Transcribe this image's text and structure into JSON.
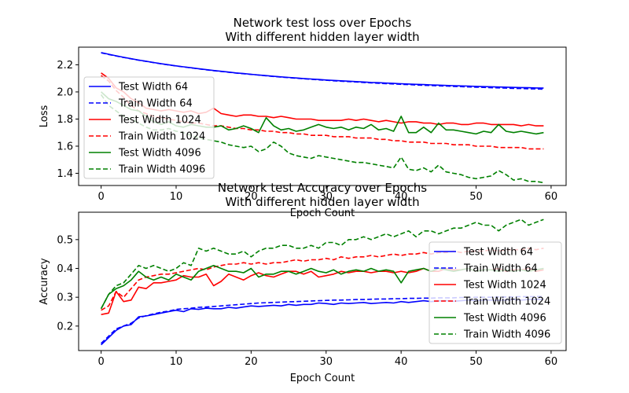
{
  "chart_data": [
    {
      "type": "line",
      "title_lines": [
        "Network test loss over Epochs",
        "With different hidden layer width"
      ],
      "xlabel": "Epoch Count",
      "ylabel": "Loss",
      "xlim": [
        -3,
        62
      ],
      "ylim": [
        1.31,
        2.33
      ],
      "xticks": [
        0,
        10,
        20,
        30,
        40,
        50,
        60
      ],
      "yticks": [
        1.4,
        1.6,
        1.8,
        2.0,
        2.2
      ],
      "ytick_labels": [
        "1.4",
        "1.6",
        "1.8",
        "2.0",
        "2.2"
      ],
      "grid": false,
      "legend_position": "upper-left",
      "x": [
        0,
        1,
        2,
        3,
        4,
        5,
        6,
        7,
        8,
        9,
        10,
        11,
        12,
        13,
        14,
        15,
        16,
        17,
        18,
        19,
        20,
        21,
        22,
        23,
        24,
        25,
        26,
        27,
        28,
        29,
        30,
        31,
        32,
        33,
        34,
        35,
        36,
        37,
        38,
        39,
        40,
        41,
        42,
        43,
        44,
        45,
        46,
        47,
        48,
        49,
        50,
        51,
        52,
        53,
        54,
        55,
        56,
        57,
        58,
        59
      ],
      "series": [
        {
          "name": "Test Width 64",
          "color": "#0000ff",
          "dash": "solid",
          "values": [
            2.29,
            2.278,
            2.266,
            2.255,
            2.245,
            2.235,
            2.226,
            2.217,
            2.208,
            2.2,
            2.192,
            2.185,
            2.178,
            2.171,
            2.164,
            2.158,
            2.152,
            2.146,
            2.14,
            2.135,
            2.13,
            2.125,
            2.12,
            2.115,
            2.111,
            2.107,
            2.103,
            2.099,
            2.095,
            2.092,
            2.088,
            2.085,
            2.082,
            2.079,
            2.076,
            2.073,
            2.07,
            2.068,
            2.065,
            2.063,
            2.06,
            2.058,
            2.056,
            2.054,
            2.052,
            2.05,
            2.048,
            2.046,
            2.044,
            2.043,
            2.041,
            2.039,
            2.038,
            2.036,
            2.035,
            2.033,
            2.032,
            2.031,
            2.029,
            2.028
          ]
        },
        {
          "name": "Train Width 64",
          "color": "#0000ff",
          "dash": "dashed",
          "values": [
            2.288,
            2.276,
            2.265,
            2.254,
            2.244,
            2.234,
            2.225,
            2.216,
            2.207,
            2.199,
            2.191,
            2.184,
            2.177,
            2.17,
            2.163,
            2.157,
            2.151,
            2.145,
            2.139,
            2.134,
            2.129,
            2.124,
            2.119,
            2.114,
            2.109,
            2.105,
            2.101,
            2.097,
            2.093,
            2.089,
            2.086,
            2.082,
            2.079,
            2.076,
            2.073,
            2.07,
            2.067,
            2.064,
            2.061,
            2.059,
            2.056,
            2.054,
            2.051,
            2.049,
            2.047,
            2.045,
            2.043,
            2.041,
            2.039,
            2.037,
            2.035,
            2.033,
            2.031,
            2.03,
            2.028,
            2.026,
            2.025,
            2.023,
            2.022,
            2.02
          ]
        },
        {
          "name": "Test Width 1024",
          "color": "#ff0000",
          "dash": "solid",
          "values": [
            2.14,
            2.1,
            2.03,
            2.0,
            1.95,
            1.92,
            1.88,
            1.87,
            1.86,
            1.87,
            1.86,
            1.85,
            1.86,
            1.84,
            1.85,
            1.88,
            1.84,
            1.83,
            1.82,
            1.83,
            1.83,
            1.82,
            1.82,
            1.81,
            1.82,
            1.81,
            1.8,
            1.8,
            1.8,
            1.79,
            1.79,
            1.79,
            1.79,
            1.8,
            1.79,
            1.8,
            1.79,
            1.78,
            1.79,
            1.78,
            1.77,
            1.78,
            1.78,
            1.77,
            1.77,
            1.76,
            1.77,
            1.77,
            1.76,
            1.76,
            1.77,
            1.77,
            1.76,
            1.76,
            1.76,
            1.76,
            1.75,
            1.76,
            1.75,
            1.75
          ]
        },
        {
          "name": "Train Width 1024",
          "color": "#ff0000",
          "dash": "dashed",
          "values": [
            2.12,
            2.08,
            2.01,
            1.96,
            1.9,
            1.86,
            1.84,
            1.82,
            1.81,
            1.8,
            1.79,
            1.78,
            1.77,
            1.77,
            1.76,
            1.75,
            1.75,
            1.74,
            1.73,
            1.73,
            1.72,
            1.72,
            1.71,
            1.71,
            1.7,
            1.7,
            1.69,
            1.69,
            1.68,
            1.68,
            1.68,
            1.67,
            1.67,
            1.67,
            1.66,
            1.66,
            1.66,
            1.65,
            1.65,
            1.64,
            1.64,
            1.63,
            1.63,
            1.63,
            1.62,
            1.62,
            1.62,
            1.61,
            1.61,
            1.61,
            1.6,
            1.6,
            1.6,
            1.59,
            1.59,
            1.59,
            1.59,
            1.58,
            1.58,
            1.58
          ]
        },
        {
          "name": "Test Width 4096",
          "color": "#008000",
          "dash": "solid",
          "values": [
            2.0,
            1.95,
            1.93,
            1.9,
            1.87,
            1.86,
            1.82,
            1.78,
            1.76,
            1.78,
            1.75,
            1.74,
            1.76,
            1.75,
            1.74,
            1.74,
            1.75,
            1.72,
            1.73,
            1.75,
            1.73,
            1.7,
            1.81,
            1.75,
            1.72,
            1.73,
            1.71,
            1.72,
            1.74,
            1.76,
            1.74,
            1.73,
            1.74,
            1.72,
            1.74,
            1.73,
            1.76,
            1.72,
            1.73,
            1.71,
            1.82,
            1.7,
            1.7,
            1.74,
            1.7,
            1.77,
            1.72,
            1.72,
            1.71,
            1.7,
            1.69,
            1.71,
            1.7,
            1.76,
            1.71,
            1.7,
            1.71,
            1.7,
            1.69,
            1.7
          ]
        },
        {
          "name": "Train Width 4096",
          "color": "#008000",
          "dash": "dashed",
          "values": [
            1.98,
            1.9,
            1.86,
            1.82,
            1.8,
            1.77,
            1.74,
            1.72,
            1.72,
            1.73,
            1.71,
            1.7,
            1.68,
            1.66,
            1.65,
            1.64,
            1.63,
            1.61,
            1.6,
            1.59,
            1.6,
            1.56,
            1.58,
            1.63,
            1.6,
            1.55,
            1.53,
            1.52,
            1.51,
            1.53,
            1.52,
            1.51,
            1.5,
            1.49,
            1.48,
            1.48,
            1.47,
            1.46,
            1.45,
            1.44,
            1.52,
            1.43,
            1.42,
            1.44,
            1.41,
            1.46,
            1.41,
            1.4,
            1.39,
            1.37,
            1.36,
            1.37,
            1.38,
            1.42,
            1.39,
            1.35,
            1.36,
            1.34,
            1.34,
            1.33
          ]
        }
      ]
    },
    {
      "type": "line",
      "title_lines": [
        "Network test Accuracy over Epochs",
        "With different hidden layer width"
      ],
      "xlabel": "Epoch Count",
      "ylabel": "Accuracy",
      "xlim": [
        -3,
        62
      ],
      "ylim": [
        0.115,
        0.595
      ],
      "xticks": [
        0,
        10,
        20,
        30,
        40,
        50,
        60
      ],
      "yticks": [
        0.2,
        0.3,
        0.4,
        0.5
      ],
      "ytick_labels": [
        "0.2",
        "0.3",
        "0.4",
        "0.5"
      ],
      "grid": false,
      "legend_position": "center-right",
      "x": [
        0,
        1,
        2,
        3,
        4,
        5,
        6,
        7,
        8,
        9,
        10,
        11,
        12,
        13,
        14,
        15,
        16,
        17,
        18,
        19,
        20,
        21,
        22,
        23,
        24,
        25,
        26,
        27,
        28,
        29,
        30,
        31,
        32,
        33,
        34,
        35,
        36,
        37,
        38,
        39,
        40,
        41,
        42,
        43,
        44,
        45,
        46,
        47,
        48,
        49,
        50,
        51,
        52,
        53,
        54,
        55,
        56,
        57,
        58,
        59
      ],
      "series": [
        {
          "name": "Test Width 64",
          "color": "#0000ff",
          "dash": "solid",
          "values": [
            0.135,
            0.16,
            0.185,
            0.2,
            0.205,
            0.232,
            0.235,
            0.24,
            0.245,
            0.25,
            0.255,
            0.25,
            0.26,
            0.258,
            0.262,
            0.26,
            0.26,
            0.265,
            0.262,
            0.266,
            0.27,
            0.268,
            0.27,
            0.272,
            0.27,
            0.275,
            0.272,
            0.275,
            0.275,
            0.28,
            0.278,
            0.275,
            0.28,
            0.278,
            0.28,
            0.282,
            0.278,
            0.28,
            0.282,
            0.28,
            0.285,
            0.282,
            0.285,
            0.288,
            0.285,
            0.287,
            0.288,
            0.286,
            0.288,
            0.29,
            0.288,
            0.29,
            0.29,
            0.289,
            0.29,
            0.292,
            0.29,
            0.292,
            0.293,
            0.292
          ]
        },
        {
          "name": "Train Width 64",
          "color": "#0000ff",
          "dash": "dashed",
          "values": [
            0.14,
            0.165,
            0.19,
            0.2,
            0.21,
            0.228,
            0.236,
            0.242,
            0.248,
            0.252,
            0.258,
            0.26,
            0.262,
            0.265,
            0.266,
            0.268,
            0.27,
            0.272,
            0.274,
            0.276,
            0.278,
            0.28,
            0.281,
            0.282,
            0.283,
            0.284,
            0.285,
            0.286,
            0.287,
            0.288,
            0.289,
            0.29,
            0.29,
            0.291,
            0.292,
            0.292,
            0.293,
            0.294,
            0.294,
            0.295,
            0.295,
            0.296,
            0.296,
            0.297,
            0.297,
            0.298,
            0.298,
            0.298,
            0.299,
            0.299,
            0.3,
            0.3,
            0.3,
            0.301,
            0.301,
            0.301,
            0.302,
            0.302,
            0.302,
            0.303
          ]
        },
        {
          "name": "Test Width 1024",
          "color": "#ff0000",
          "dash": "solid",
          "values": [
            0.24,
            0.245,
            0.32,
            0.285,
            0.29,
            0.335,
            0.33,
            0.35,
            0.35,
            0.355,
            0.36,
            0.375,
            0.37,
            0.37,
            0.38,
            0.34,
            0.355,
            0.38,
            0.37,
            0.36,
            0.375,
            0.385,
            0.375,
            0.37,
            0.38,
            0.39,
            0.39,
            0.38,
            0.39,
            0.37,
            0.375,
            0.38,
            0.39,
            0.385,
            0.39,
            0.39,
            0.385,
            0.39,
            0.39,
            0.385,
            0.39,
            0.385,
            0.39,
            0.4,
            0.39,
            0.39,
            0.4,
            0.395,
            0.395,
            0.4,
            0.39,
            0.395,
            0.395,
            0.4,
            0.39,
            0.395,
            0.395,
            0.4,
            0.39,
            0.395
          ]
        },
        {
          "name": "Train Width 1024",
          "color": "#ff0000",
          "dash": "dashed",
          "values": [
            0.255,
            0.27,
            0.32,
            0.3,
            0.33,
            0.36,
            0.37,
            0.375,
            0.38,
            0.38,
            0.385,
            0.39,
            0.395,
            0.4,
            0.395,
            0.405,
            0.41,
            0.415,
            0.415,
            0.42,
            0.415,
            0.42,
            0.415,
            0.42,
            0.42,
            0.425,
            0.43,
            0.425,
            0.43,
            0.43,
            0.435,
            0.43,
            0.44,
            0.435,
            0.44,
            0.44,
            0.445,
            0.44,
            0.445,
            0.45,
            0.445,
            0.45,
            0.45,
            0.455,
            0.45,
            0.455,
            0.455,
            0.46,
            0.455,
            0.46,
            0.46,
            0.46,
            0.465,
            0.46,
            0.465,
            0.465,
            0.465,
            0.47,
            0.465,
            0.47
          ]
        },
        {
          "name": "Test Width 4096",
          "color": "#008000",
          "dash": "solid",
          "values": [
            0.26,
            0.31,
            0.33,
            0.34,
            0.36,
            0.39,
            0.37,
            0.36,
            0.37,
            0.36,
            0.38,
            0.37,
            0.36,
            0.39,
            0.4,
            0.41,
            0.4,
            0.39,
            0.39,
            0.385,
            0.4,
            0.37,
            0.38,
            0.38,
            0.39,
            0.39,
            0.38,
            0.39,
            0.4,
            0.39,
            0.385,
            0.395,
            0.38,
            0.39,
            0.395,
            0.39,
            0.4,
            0.39,
            0.395,
            0.39,
            0.35,
            0.39,
            0.395,
            0.4,
            0.39,
            0.4,
            0.395,
            0.39,
            0.395,
            0.4,
            0.39,
            0.395,
            0.395,
            0.39,
            0.395,
            0.39,
            0.395,
            0.39,
            0.395,
            0.4
          ]
        },
        {
          "name": "Train Width 4096",
          "color": "#008000",
          "dash": "dashed",
          "values": [
            0.26,
            0.31,
            0.34,
            0.35,
            0.38,
            0.41,
            0.4,
            0.41,
            0.4,
            0.39,
            0.4,
            0.42,
            0.41,
            0.47,
            0.46,
            0.47,
            0.46,
            0.45,
            0.45,
            0.46,
            0.44,
            0.46,
            0.47,
            0.47,
            0.48,
            0.48,
            0.47,
            0.47,
            0.48,
            0.47,
            0.49,
            0.49,
            0.48,
            0.5,
            0.5,
            0.51,
            0.5,
            0.51,
            0.52,
            0.51,
            0.52,
            0.53,
            0.51,
            0.53,
            0.53,
            0.52,
            0.53,
            0.54,
            0.54,
            0.55,
            0.56,
            0.55,
            0.55,
            0.53,
            0.55,
            0.56,
            0.57,
            0.55,
            0.56,
            0.57
          ]
        }
      ]
    }
  ]
}
